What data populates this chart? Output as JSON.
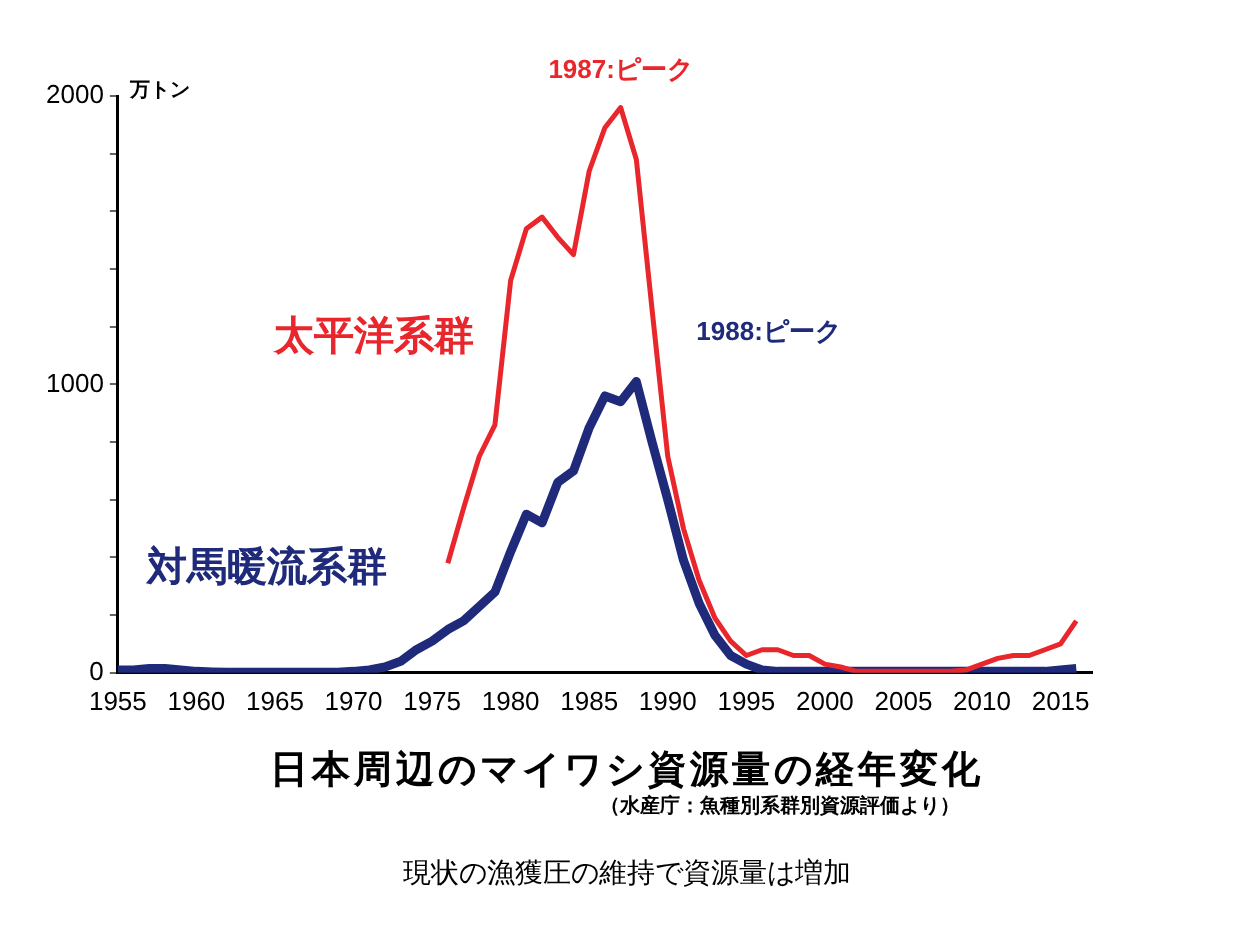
{
  "chart_data": {
    "type": "line",
    "title": "日本周辺のマイワシ資源量の経年変化",
    "subtitle": "（水産庁：魚種別系群別資源評価より）",
    "ylabel": "万トン",
    "series": [
      {
        "name": "太平洋系群",
        "color": "#e8262b",
        "x": [
          1976,
          1977,
          1978,
          1979,
          1980,
          1981,
          1982,
          1983,
          1984,
          1985,
          1986,
          1987,
          1988,
          1989,
          1990,
          1991,
          1992,
          1993,
          1994,
          1995,
          1996,
          1997,
          1998,
          1999,
          2000,
          2001,
          2002,
          2003,
          2004,
          2005,
          2006,
          2007,
          2008,
          2009,
          2010,
          2011,
          2012,
          2013,
          2014,
          2015,
          2016
        ],
        "values": [
          380,
          570,
          750,
          860,
          1360,
          1540,
          1580,
          1510,
          1450,
          1740,
          1890,
          1960,
          1780,
          1260,
          750,
          500,
          320,
          190,
          110,
          60,
          80,
          80,
          60,
          60,
          30,
          20,
          5,
          5,
          5,
          5,
          5,
          5,
          5,
          10,
          30,
          50,
          60,
          60,
          80,
          100,
          180
        ]
      },
      {
        "name": "対馬暖流系群",
        "color": "#1f2a7a",
        "x": [
          1955,
          1956,
          1957,
          1958,
          1959,
          1960,
          1961,
          1962,
          1965,
          1969,
          1970,
          1971,
          1972,
          1973,
          1974,
          1975,
          1976,
          1977,
          1978,
          1979,
          1980,
          1981,
          1982,
          1983,
          1984,
          1985,
          1986,
          1987,
          1988,
          1989,
          1990,
          1991,
          1992,
          1993,
          1994,
          1995,
          1996,
          1997,
          2000,
          2005,
          2010,
          2014,
          2015,
          2016
        ],
        "values": [
          10,
          10,
          15,
          15,
          10,
          5,
          3,
          2,
          2,
          2,
          5,
          10,
          20,
          40,
          80,
          110,
          150,
          180,
          230,
          280,
          420,
          550,
          520,
          660,
          700,
          850,
          960,
          940,
          1010,
          800,
          600,
          390,
          240,
          130,
          60,
          30,
          10,
          5,
          5,
          5,
          5,
          5,
          10,
          15
        ]
      }
    ],
    "xlim": [
      1955,
      2017
    ],
    "xticks": [
      1955,
      1960,
      1965,
      1970,
      1975,
      1980,
      1985,
      1990,
      1995,
      2000,
      2005,
      2010,
      2015
    ],
    "ylim": [
      0,
      2000
    ],
    "yticks": [
      0,
      {
        "value": 200,
        "label": null
      },
      {
        "value": 400,
        "label": null
      },
      {
        "value": 600,
        "label": null
      },
      {
        "value": 800,
        "label": null
      },
      1000,
      {
        "value": 1200,
        "label": null
      },
      {
        "value": 1400,
        "label": null
      },
      {
        "value": 1600,
        "label": null
      },
      {
        "value": 1800,
        "label": null
      },
      2000
    ],
    "grid": false,
    "legend": false,
    "marker": "none",
    "line_style": "solid",
    "annotations": [
      {
        "text": "1987:ピーク",
        "x": 1987,
        "y": 1960
      },
      {
        "text": "1988:ピーク",
        "x": 1988,
        "y": 1010
      },
      "現状の漁獲圧の維持で資源量は増加"
    ]
  }
}
